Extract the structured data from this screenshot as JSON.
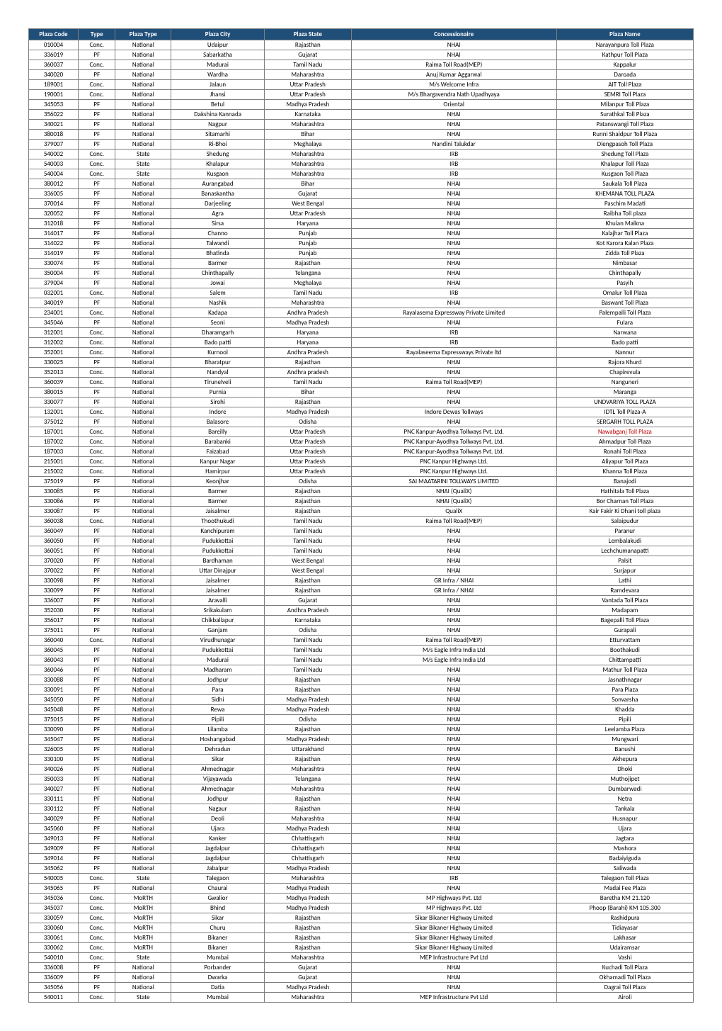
{
  "columns": [
    "Plaza Code",
    "Type",
    "Plaza Type",
    "Plaza City",
    "Plaza State",
    "Concessionaire",
    "Plaza Name"
  ],
  "colClasses": [
    "col-code",
    "col-type",
    "col-ptype",
    "col-city",
    "col-state",
    "col-conc",
    "col-name"
  ],
  "rows": [
    [
      "010004",
      "Conc.",
      "National",
      "Udaipur",
      "Rajasthan",
      "NHAI",
      "Narayanpura Toll Plaza"
    ],
    [
      "336019",
      "PF",
      "National",
      "Sabarkatha",
      "Gujarat",
      "NHAI",
      "Kathpur Toll Plaza"
    ],
    [
      "360037",
      "Conc.",
      "National",
      "Madurai",
      "Tamil Nadu",
      "Raima Toll Road(MEP)",
      "Kappalur"
    ],
    [
      "340020",
      "PF",
      "National",
      "Wardha",
      "Maharashtra",
      "Anuj Kumar Aggarwal",
      "Daroada"
    ],
    [
      "189001",
      "Conc.",
      "National",
      "Jalaun",
      "Uttar Pradesh",
      "M/s Welcome Infra",
      "AIT Toll Plaza"
    ],
    [
      "190001",
      "Conc.",
      "National",
      "Jhansi",
      "Uttar Pradesh",
      "M/s Bhargavendra Nath Upadhyaya",
      "SEMRI Toll Plaza"
    ],
    [
      "345053",
      "PF",
      "National",
      "Betul",
      "Madhya Pradesh",
      "Oriental",
      "Milanpur Toll Plaza"
    ],
    [
      "356022",
      "PF",
      "National",
      "Dakshina Kannada",
      "Karnataka",
      "NHAI",
      "Surathkal Toll Plaza"
    ],
    [
      "340021",
      "PF",
      "National",
      "Nagpur",
      "Maharashtra",
      "NHAI",
      "Patanswangi Toll Plaza"
    ],
    [
      "380018",
      "PF",
      "National",
      "Sitamarhi",
      "Bihar",
      "NHAI",
      "Runni Shaidpur Toll Plaza"
    ],
    [
      "379007",
      "PF",
      "National",
      "Ri-Bhoi",
      "Meghalaya",
      "Nandini Talukdar",
      "Diengpasoh Toll Plaza"
    ],
    [
      "540002",
      "Conc.",
      "State",
      "Shedung",
      "Maharashtra",
      "IRB",
      "Shedung Toll Plaza"
    ],
    [
      "540003",
      "Conc.",
      "State",
      "Khalapur",
      "Maharashtra",
      "IRB",
      "Khalapur Toll Plaza"
    ],
    [
      "540004",
      "Conc.",
      "State",
      "Kusgaon",
      "Maharashtra",
      "IRB",
      "Kusgaon Toll Plaza"
    ],
    [
      "380012",
      "PF",
      "National",
      "Aurangabad",
      "Bihar",
      "NHAI",
      "Saukala Toll Plaza"
    ],
    [
      "336005",
      "PF",
      "National",
      "Banaskantha",
      "Gujarat",
      "NHAI",
      "KHEMANA TOLL PLAZA"
    ],
    [
      "370014",
      "PF",
      "National",
      "Darjeeling",
      "West Bengal",
      "NHAI",
      "Paschim Madati"
    ],
    [
      "320052",
      "PF",
      "National",
      "Agra",
      "Uttar Pradesh",
      "NHAI",
      "Raibha Toll plaza"
    ],
    [
      "312018",
      "PF",
      "National",
      "Sirsa",
      "Haryana",
      "NHAI",
      "Khuian Malkna"
    ],
    [
      "314017",
      "PF",
      "National",
      "Channo",
      "Punjab",
      "NHAI",
      "Kalajhar Toll Plaza"
    ],
    [
      "314022",
      "PF",
      "National",
      "Talwandi",
      "Punjab",
      "NHAI",
      "Kot Karora Kalan Plaza"
    ],
    [
      "314019",
      "PF",
      "National",
      "Bhatinda",
      "Punjab",
      "NHAI",
      "Zidda Toll Plaza"
    ],
    [
      "330074",
      "PF",
      "National",
      "Barmer",
      "Rajasthan",
      "NHAI",
      "Nimbasar"
    ],
    [
      "350004",
      "PF",
      "National",
      "Chinthapally",
      "Telangana",
      "NHAI",
      "Chinthapally"
    ],
    [
      "379004",
      "PF",
      "National",
      "Jowai",
      "Meghalaya",
      "NHAI",
      "Pasyih"
    ],
    [
      "032001",
      "Conc.",
      "National",
      "Salem",
      "Tamil Nadu",
      "IRB",
      "Omalur Toll Plaza"
    ],
    [
      "340019",
      "PF",
      "National",
      "Nashik",
      "Maharashtra",
      "NHAI",
      "Baswant  Toll Plaza"
    ],
    [
      "234001",
      "Conc.",
      "National",
      "Kadapa",
      "Andhra Pradesh",
      "Rayalasema Expressway Private Limited",
      "Palempalli Toll Plaza"
    ],
    [
      "345046",
      "PF",
      "National",
      "Seoni",
      "Madhya Pradesh",
      "NHAI",
      "Fulara"
    ],
    [
      "312001",
      "Conc.",
      "National",
      "Dharamgarh",
      "Haryana",
      "IRB",
      "Narwana"
    ],
    [
      "312002",
      "Conc.",
      "National",
      "Bado patti",
      "Haryana",
      "IRB",
      "Bado patti"
    ],
    [
      "352001",
      "Conc.",
      "National",
      "Kurnool",
      "Andhra Pradesh",
      "Rayalaseema Expressways Private ltd",
      "Nannur"
    ],
    [
      "330025",
      "PF",
      "National",
      "Bharatpur",
      "Rajasthan",
      "NHAI",
      "Rajora Khurd"
    ],
    [
      "352013",
      "Conc.",
      "National",
      "Nandyal",
      "Andhra pradesh",
      "NHAI",
      "Chapirevula"
    ],
    [
      "360039",
      "Conc.",
      "National",
      "Tirunelveli",
      "Tamil Nadu",
      "Raima Toll Road(MEP)",
      "Nanguneri"
    ],
    [
      "380015",
      "PF",
      "National",
      "Purnia",
      "Bihar",
      "NHAI",
      "Maranga"
    ],
    [
      "330077",
      "PF",
      "National",
      "Sirohi",
      "Rajasthan",
      "NHAI",
      "UNDVARIYA TOLL PLAZA"
    ],
    [
      "132001",
      "Conc.",
      "National",
      "Indore",
      "Madhya Pradesh",
      "Indore Dewas Tollways",
      "IDTL Toll Plaza-A"
    ],
    [
      "375012",
      "PF",
      "National",
      "Balasore",
      "Odisha",
      "NHAI",
      "SERGARH TOLL PLAZA"
    ],
    [
      "187001",
      "Conc.",
      "National",
      "Bareilly",
      "Uttar Pradesh",
      "PNC Kanpur-Ayodhya Tollways Pvt. Ltd.",
      "Nawabganj Toll Plaza"
    ],
    [
      "187002",
      "Conc.",
      "National",
      "Barabanki",
      "Uttar Pradesh",
      "PNC Kanpur-Ayodhya Tollways Pvt. Ltd.",
      "Ahmadpur Toll Plaza"
    ],
    [
      "187003",
      "Conc.",
      "National",
      "Faizabad",
      "Uttar Pradesh",
      "PNC Kanpur-Ayodhya Tollways Pvt. Ltd.",
      "Ronahi Toll Plaza"
    ],
    [
      "215001",
      "Conc.",
      "National",
      "Kanpur Nagar",
      "Uttar Pradesh",
      "PNC Kanpur Highways Ltd.",
      "Aliyapur Toll Plaza"
    ],
    [
      "215002",
      "Conc.",
      "National",
      "Hamirpur",
      "Uttar Pradesh",
      "PNC Kanpur Highways Ltd.",
      "Khanna Toll Plaza"
    ],
    [
      "375019",
      "PF",
      "National",
      "Keonjhar",
      "Odisha",
      "SAI MAATARINI TOLLWAYS LIMITED",
      "Banajodi"
    ],
    [
      "330085",
      "PF",
      "National",
      "Barmer",
      "Rajasthan",
      "NHAI (QualiX)",
      "Hathitala Toll Plaza"
    ],
    [
      "330086",
      "PF",
      "National",
      "Barmer",
      "Rajasthan",
      "NHAI (QualiX)",
      "Bor Charnan Toll Plaza"
    ],
    [
      "330087",
      "PF",
      "National",
      "Jaisalmer",
      "Rajasthan",
      "QualiX",
      "Kair Fakir Ki Dhani toll plaza"
    ],
    [
      "360038",
      "Conc.",
      "National",
      "Thoothukudi",
      "Tamil Nadu",
      "Raima Toll Road(MEP)",
      "Salaipudur"
    ],
    [
      "360049",
      "PF",
      "National",
      "Kanchipuram",
      "Tamil Nadu",
      "NHAI",
      "Paranur"
    ],
    [
      "360050",
      "PF",
      "National",
      "Pudukkottai",
      "Tamil Nadu",
      "NHAI",
      "Lembalakudi"
    ],
    [
      "360051",
      "PF",
      "National",
      "Pudukkottai",
      "Tamil Nadu",
      "NHAI",
      "Lechchumanapatti"
    ],
    [
      "370020",
      "PF",
      "National",
      "Bardhaman",
      "West Bengal",
      "NHAI",
      "Palsit"
    ],
    [
      "370022",
      "PF",
      "National",
      "Uttar Dinajpur",
      "West Bengal",
      "NHAI",
      "Surjapur"
    ],
    [
      "330098",
      "PF",
      "National",
      "Jaisalmer",
      "Rajasthan",
      "GR Infra / NHAI",
      "Lathi"
    ],
    [
      "330099",
      "PF",
      "National",
      "Jaisalmer",
      "Rajasthan",
      "GR Infra / NHAI",
      "Ramdevara"
    ],
    [
      "336007",
      "PF",
      "National",
      "Aravalli",
      "Gujarat",
      "NHAI",
      "Vantada Toll Plaza"
    ],
    [
      "352030",
      "PF",
      "National",
      "Srikakulam",
      "Andhra Pradesh",
      "NHAI",
      "Madapam"
    ],
    [
      "356017",
      "PF",
      "National",
      "Chikballapur",
      "Karnataka",
      "NHAI",
      "Bagepalli Toll Plaza"
    ],
    [
      "375011",
      "PF",
      "National",
      "Ganjam",
      "Odisha",
      "NHAI",
      "Gurapali"
    ],
    [
      "360040",
      "Conc.",
      "National",
      "Virudhunagar",
      "Tamil Nadu",
      "Raima Toll Road(MEP)",
      "Etturvattam"
    ],
    [
      "360045",
      "PF",
      "National",
      "Pudukkottai",
      "Tamil Nadu",
      "M/s Eagle Infra India Ltd",
      "Boothakudi"
    ],
    [
      "360043",
      "PF",
      "National",
      "Madurai",
      "Tamil Nadu",
      "M/s Eagle Infra India Ltd",
      "Chittampatti"
    ],
    [
      "360046",
      "PF",
      "National",
      "Madharam",
      "Tamil Nadu",
      "NHAI",
      "Mathur Toll Plaza"
    ],
    [
      "330088",
      "PF",
      "National",
      "Jodhpur",
      "Rajasthan",
      "NHAI",
      "Jasnathnagar"
    ],
    [
      "330091",
      "PF",
      "National",
      "Para",
      "Rajasthan",
      "NHAI",
      "Para Plaza"
    ],
    [
      "345050",
      "PF",
      "National",
      "Sidhi",
      "Madhya Pradesh",
      "NHAI",
      "Sonvarsha"
    ],
    [
      "345048",
      "PF",
      "National",
      "Rewa",
      "Madhya Pradesh",
      "NHAI",
      "Khadda"
    ],
    [
      "375015",
      "PF",
      "National",
      "Pipili",
      "Odisha",
      "NHAI",
      "Pipili"
    ],
    [
      "330090",
      "PF",
      "National",
      "Lilamba",
      "Rajasthan",
      "NHAI",
      "Leelamba Plaza"
    ],
    [
      "345047",
      "PF",
      "National",
      "Hoshangabad",
      "Madhya Pradesh",
      "NHAI",
      "Mungwari"
    ],
    [
      "326005",
      "PF",
      "National",
      "Dehradun",
      "Uttarakhand",
      "NHAI",
      "Banushi"
    ],
    [
      "330100",
      "PF",
      "National",
      "Sikar",
      "Rajasthan",
      "NHAI",
      "Akhepura"
    ],
    [
      "340026",
      "PF",
      "National",
      "Ahmednagar",
      "Maharashtra",
      "NHAI",
      "Dhoki"
    ],
    [
      "350033",
      "PF",
      "National",
      "Vijayawada",
      "Telangana",
      "NHAI",
      "Muthojipet"
    ],
    [
      "340027",
      "PF",
      "National",
      "Ahmednagar",
      "Maharashtra",
      "NHAI",
      "Dumbarwadi"
    ],
    [
      "330111",
      "PF",
      "National",
      "Jodhpur",
      "Rajasthan",
      "NHAI",
      "Netra"
    ],
    [
      "330112",
      "PF",
      "National",
      "Nagaur",
      "Rajasthan",
      "NHAI",
      "Tankala"
    ],
    [
      "340029",
      "PF",
      "National",
      "Deoli",
      "Maharashtra",
      "NHAI",
      "Husnapur"
    ],
    [
      "345060",
      "PF",
      "National",
      "Ujara",
      "Madhya Pradesh",
      "NHAI",
      "Ujara"
    ],
    [
      "349013",
      "PF",
      "National",
      "Kanker",
      "Chhattisgarh",
      "NHAI",
      "Jagtara"
    ],
    [
      "349009",
      "PF",
      "National",
      "Jagdalpur",
      "Chhattisgarh",
      "NHAI",
      "Mashora"
    ],
    [
      "349014",
      "PF",
      "National",
      "Jagdalpur",
      "Chhattisgarh",
      "NHAI",
      "Badaiyiguda"
    ],
    [
      "345062",
      "PF",
      "National",
      "Jabalpur",
      "Madhya Pradesh",
      "NHAI",
      "Saliwada"
    ],
    [
      "540005",
      "Conc.",
      "State",
      "Talegaon",
      "Maharashtra",
      "IRB",
      "Talegaon Toll Plaza"
    ],
    [
      "345065",
      "PF",
      "National",
      "Chaurai",
      "Madhya Pradesh",
      "NHAI",
      "Madai Fee Plaza"
    ],
    [
      "345036",
      "Conc.",
      "MoRTH",
      "Gwalior",
      "Madhya Pradesh",
      "MP Highways Pvt. Ltd",
      "Baretha KM 21.120"
    ],
    [
      "345037",
      "Conc.",
      "MoRTH",
      "Bhind",
      "Madhya Pradesh",
      "MP Highways Pvt. Ltd",
      "Phoop (Barahi) KM 105.300"
    ],
    [
      "330059",
      "Conc.",
      "MoRTH",
      "Sikar",
      "Rajasthan",
      "Sikar Bikaner Highway Limited",
      "Rashidpura"
    ],
    [
      "330060",
      "Conc.",
      "MoRTH",
      "Churu",
      "Rajasthan",
      "Sikar Bikaner Highway Limited",
      "Tidiayasar"
    ],
    [
      "330061",
      "Conc.",
      "MoRTH",
      "Bikaner",
      "Rajasthan",
      "Sikar Bikaner Highway Limited",
      "Lakhasar"
    ],
    [
      "330062",
      "Conc.",
      "MoRTH",
      "Bikaner",
      "Rajasthan",
      "Sikar Bikaner Highway Limited",
      "Udairamsar"
    ],
    [
      "540010",
      "Conc.",
      "State",
      "Mumbai",
      "Maharashtra",
      "MEP Infrastructure Pvt Ltd",
      "Vashi"
    ],
    [
      "336008",
      "PF",
      "National",
      "Porbander",
      "Gujarat",
      "NHAI",
      "Kuchadi Toll Plaza"
    ],
    [
      "336009",
      "PF",
      "National",
      "Dwarka",
      "Gujarat",
      "NHAI",
      "Okhamadi Toll Plaza"
    ],
    [
      "345056",
      "PF",
      "National",
      "Datia",
      "Madhya Pradesh",
      "NHAI",
      "Dagrai Toll Plaza"
    ],
    [
      "540011",
      "Conc.",
      "State",
      "Mumbai",
      "Maharashtra",
      "MEP Infrastructure Pvt Ltd",
      "Airoli"
    ]
  ],
  "highlightRow": 39,
  "highlightCol": 6,
  "header_bg": "#1f4e79",
  "header_fg": "#ffffff",
  "border_color": "#7f7f7f",
  "highlight_color": "#c00000"
}
